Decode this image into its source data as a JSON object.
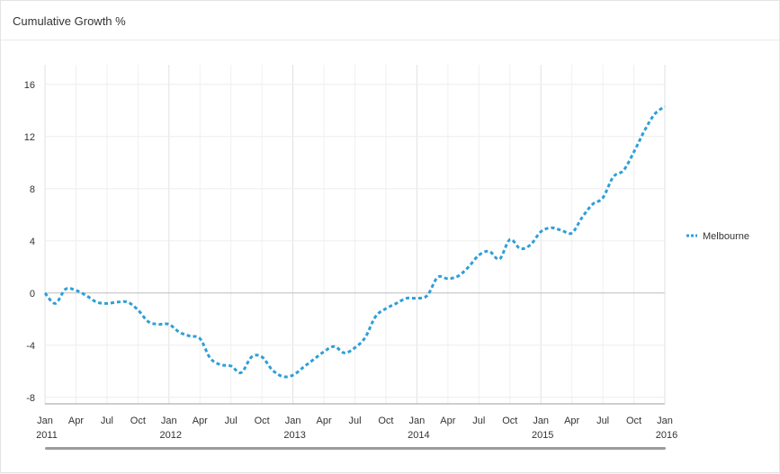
{
  "panel": {
    "title": "Cumulative Growth %"
  },
  "chart_data": {
    "type": "line",
    "title": "Cumulative Growth %",
    "xlabel": "",
    "ylabel": "",
    "x_start": "2011-01",
    "x_end": "2016-01",
    "ylim": [
      -8.5,
      17.5
    ],
    "y_ticks": [
      16,
      12,
      8,
      4,
      0,
      -4,
      -8
    ],
    "x_tick_labels": [
      {
        "month": "Jan",
        "year": "2011"
      },
      {
        "month": "Apr",
        "year": ""
      },
      {
        "month": "Jul",
        "year": ""
      },
      {
        "month": "Oct",
        "year": ""
      },
      {
        "month": "Jan",
        "year": "2012"
      },
      {
        "month": "Apr",
        "year": ""
      },
      {
        "month": "Jul",
        "year": ""
      },
      {
        "month": "Oct",
        "year": ""
      },
      {
        "month": "Jan",
        "year": "2013"
      },
      {
        "month": "Apr",
        "year": ""
      },
      {
        "month": "Jul",
        "year": ""
      },
      {
        "month": "Oct",
        "year": ""
      },
      {
        "month": "Jan",
        "year": "2014"
      },
      {
        "month": "Apr",
        "year": ""
      },
      {
        "month": "Jul",
        "year": ""
      },
      {
        "month": "Oct",
        "year": ""
      },
      {
        "month": "Jan",
        "year": "2015"
      },
      {
        "month": "Apr",
        "year": ""
      },
      {
        "month": "Jul",
        "year": ""
      },
      {
        "month": "Oct",
        "year": ""
      },
      {
        "month": "Jan",
        "year": "2016"
      }
    ],
    "grid": true,
    "legend_position": "right",
    "series": [
      {
        "name": "Melbourne",
        "color": "#2e9fd8",
        "style": "dashed",
        "x": [
          "2011-01",
          "2011-02",
          "2011-03",
          "2011-04",
          "2011-05",
          "2011-06",
          "2011-07",
          "2011-08",
          "2011-09",
          "2011-10",
          "2011-11",
          "2011-12",
          "2012-01",
          "2012-02",
          "2012-03",
          "2012-04",
          "2012-05",
          "2012-06",
          "2012-07",
          "2012-08",
          "2012-09",
          "2012-10",
          "2012-11",
          "2012-12",
          "2013-01",
          "2013-02",
          "2013-03",
          "2013-04",
          "2013-05",
          "2013-06",
          "2013-07",
          "2013-08",
          "2013-09",
          "2013-10",
          "2013-11",
          "2013-12",
          "2014-01",
          "2014-02",
          "2014-03",
          "2014-04",
          "2014-05",
          "2014-06",
          "2014-07",
          "2014-08",
          "2014-09",
          "2014-10",
          "2014-11",
          "2014-12",
          "2015-01",
          "2015-02",
          "2015-03",
          "2015-04",
          "2015-05",
          "2015-06",
          "2015-07",
          "2015-08",
          "2015-09",
          "2015-10",
          "2015-11",
          "2015-12",
          "2016-01"
        ],
        "values": [
          0.0,
          -0.8,
          0.3,
          0.2,
          -0.2,
          -0.7,
          -0.8,
          -0.7,
          -0.7,
          -1.3,
          -2.2,
          -2.4,
          -2.4,
          -3.0,
          -3.3,
          -3.5,
          -5.0,
          -5.5,
          -5.6,
          -6.1,
          -4.9,
          -4.9,
          -5.9,
          -6.4,
          -6.3,
          -5.7,
          -5.1,
          -4.5,
          -4.1,
          -4.6,
          -4.2,
          -3.4,
          -1.8,
          -1.2,
          -0.8,
          -0.4,
          -0.4,
          -0.2,
          1.2,
          1.1,
          1.3,
          2.0,
          2.9,
          3.2,
          2.6,
          4.1,
          3.4,
          3.7,
          4.7,
          5.0,
          4.8,
          4.6,
          5.8,
          6.8,
          7.3,
          8.9,
          9.4,
          10.8,
          12.4,
          13.7,
          14.3
        ]
      }
    ]
  }
}
